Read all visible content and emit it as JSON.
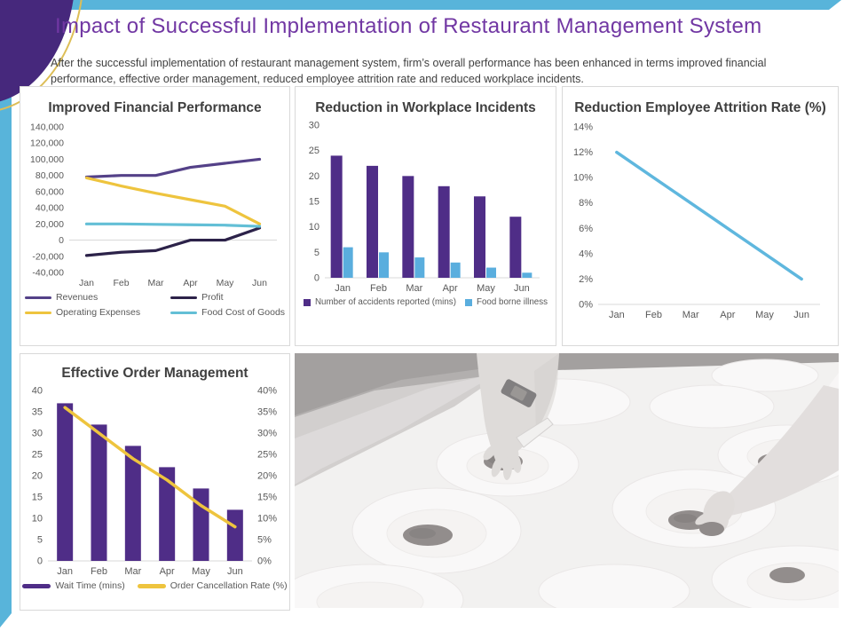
{
  "slide": {
    "title": "Impact of Successful Implementation of Restaurant Management System",
    "subtitle": "After the successful implementation of restaurant management system, firm’s overall performance has been enhanced in terms improved financial performance, effective order management, reduced employee attrition rate and reduced workplace incidents."
  },
  "colors": {
    "title_purple": "#7137a3",
    "ribbon_cyan": "#58b4da",
    "corner_purple": "#46287c",
    "corner_gold": "#ddbe57",
    "panel_border": "#d9d9d9",
    "axis_text": "#595959"
  },
  "photo": {
    "name": "chefs-plating-dishes"
  },
  "chart_data": [
    {
      "key": "financial",
      "type": "line",
      "title": "Improved Financial Performance",
      "categories": [
        "Jan",
        "Feb",
        "Mar",
        "Apr",
        "May",
        "Jun"
      ],
      "ylim": [
        -40000,
        140000
      ],
      "baseline": 0,
      "grid": false,
      "legend_position": "bottom",
      "yticks": [
        {
          "v": 140000,
          "label": "140,000"
        },
        {
          "v": 120000,
          "label": "120,000"
        },
        {
          "v": 100000,
          "label": "100,000"
        },
        {
          "v": 80000,
          "label": "80,000"
        },
        {
          "v": 60000,
          "label": "60,000"
        },
        {
          "v": 40000,
          "label": "40,000"
        },
        {
          "v": 20000,
          "label": "20,000"
        },
        {
          "v": 0,
          "label": "0"
        },
        {
          "v": -20000,
          "label": "-20,000"
        },
        {
          "v": -40000,
          "label": "-40,000"
        }
      ],
      "series": [
        {
          "name": "Revenues",
          "type": "line",
          "color": "#544188",
          "lw": 3.2,
          "values": [
            78000,
            80000,
            80000,
            90000,
            95000,
            100000
          ]
        },
        {
          "name": "Profit",
          "type": "line",
          "color": "#2c2249",
          "lw": 3.2,
          "values": [
            -19000,
            -15000,
            -13000,
            0,
            0,
            15000
          ]
        },
        {
          "name": "Operating Expenses",
          "type": "line",
          "color": "#eec43e",
          "lw": 3.2,
          "values": [
            77000,
            67000,
            58000,
            50000,
            42000,
            20000
          ]
        },
        {
          "name": "Food Cost of Goods",
          "type": "line",
          "color": "#63bfd6",
          "lw": 3.2,
          "values": [
            20000,
            20000,
            19500,
            19000,
            18500,
            17000
          ]
        }
      ],
      "legend": [
        {
          "label": "Revenues",
          "color": "#544188",
          "swatch": "line"
        },
        {
          "label": "Profit",
          "color": "#2c2249",
          "swatch": "line"
        },
        {
          "label": "Operating Expenses",
          "color": "#eec43e",
          "swatch": "line"
        },
        {
          "label": "Food Cost of Goods",
          "color": "#63bfd6",
          "swatch": "line"
        }
      ]
    },
    {
      "key": "incidents",
      "type": "bar",
      "title": "Reduction in Workplace Incidents",
      "categories": [
        "Jan",
        "Feb",
        "Mar",
        "Apr",
        "May",
        "Jun"
      ],
      "ylim": [
        0,
        30
      ],
      "baseline": 0,
      "grid": false,
      "legend_position": "bottom",
      "yticks": [
        {
          "v": 30,
          "label": "30"
        },
        {
          "v": 25,
          "label": "25"
        },
        {
          "v": 20,
          "label": "20"
        },
        {
          "v": 15,
          "label": "15"
        },
        {
          "v": 10,
          "label": "10"
        },
        {
          "v": 5,
          "label": "5"
        },
        {
          "v": 0,
          "label": "0"
        }
      ],
      "series": [
        {
          "name": "Number of accidents reported (mins)",
          "type": "bar",
          "color": "#4f2d87",
          "bw": 13,
          "offset": -7,
          "values": [
            24,
            22,
            20,
            18,
            16,
            12
          ]
        },
        {
          "name": "Food borne illness",
          "type": "bar",
          "color": "#5aaede",
          "bw": 11,
          "offset": 6,
          "values": [
            6,
            5,
            4,
            3,
            2,
            1
          ]
        }
      ],
      "legend": [
        {
          "label": "Number of accidents reported (mins)",
          "color": "#4f2d87",
          "swatch": "square"
        },
        {
          "label": "Food borne illness",
          "color": "#5aaede",
          "swatch": "square"
        }
      ]
    },
    {
      "key": "attrition",
      "type": "line",
      "title": "Reduction Employee Attrition Rate (%)",
      "categories": [
        "Jan",
        "Feb",
        "Mar",
        "Apr",
        "May",
        "Jun"
      ],
      "ylim": [
        0,
        14
      ],
      "baseline": 0,
      "grid": false,
      "legend_position": "none",
      "yticks": [
        {
          "v": 14,
          "label": "14%"
        },
        {
          "v": 12,
          "label": "12%"
        },
        {
          "v": 10,
          "label": "10%"
        },
        {
          "v": 8,
          "label": "8%"
        },
        {
          "v": 6,
          "label": "6%"
        },
        {
          "v": 4,
          "label": "4%"
        },
        {
          "v": 2,
          "label": "2%"
        },
        {
          "v": 0,
          "label": "0%"
        }
      ],
      "series": [
        {
          "name": "Employee Attrition Rate",
          "type": "line",
          "color": "#5fb7de",
          "lw": 3.5,
          "values": [
            12,
            10,
            8,
            6,
            4,
            2
          ]
        }
      ],
      "legend": []
    },
    {
      "key": "order",
      "type": "bar",
      "title": "Effective Order Management",
      "categories": [
        "Jan",
        "Feb",
        "Mar",
        "Apr",
        "May",
        "Jun"
      ],
      "ylim": [
        0,
        40
      ],
      "y2lim": [
        0,
        40
      ],
      "baseline": 0,
      "grid": false,
      "legend_position": "bottom",
      "yticks": [
        {
          "v": 40,
          "label": "40"
        },
        {
          "v": 35,
          "label": "35"
        },
        {
          "v": 30,
          "label": "30"
        },
        {
          "v": 25,
          "label": "25"
        },
        {
          "v": 20,
          "label": "20"
        },
        {
          "v": 15,
          "label": "15"
        },
        {
          "v": 10,
          "label": "10"
        },
        {
          "v": 5,
          "label": "5"
        },
        {
          "v": 0,
          "label": "0"
        }
      ],
      "y2ticks": [
        {
          "v": 40,
          "label": "40%"
        },
        {
          "v": 35,
          "label": "35%"
        },
        {
          "v": 30,
          "label": "30%"
        },
        {
          "v": 25,
          "label": "25%"
        },
        {
          "v": 20,
          "label": "20%"
        },
        {
          "v": 15,
          "label": "15%"
        },
        {
          "v": 10,
          "label": "10%"
        },
        {
          "v": 5,
          "label": "5%"
        },
        {
          "v": 0,
          "label": "0%"
        }
      ],
      "series": [
        {
          "name": "Wait Time (mins)",
          "type": "bar",
          "color": "#4f2d87",
          "bw": 18,
          "offset": 0,
          "values": [
            37,
            32,
            27,
            22,
            17,
            12
          ]
        },
        {
          "name": "Order Cancellation Rate (%)",
          "type": "line",
          "axis": "right",
          "color": "#eec43e",
          "lw": 3.5,
          "values": [
            36,
            30,
            24,
            19,
            13,
            8
          ]
        }
      ],
      "legend": [
        {
          "label": "Wait Time (mins)",
          "color": "#4f2d87",
          "swatch": "thickline"
        },
        {
          "label": "Order Cancellation Rate (%)",
          "color": "#eec43e",
          "swatch": "thickline"
        }
      ]
    }
  ]
}
